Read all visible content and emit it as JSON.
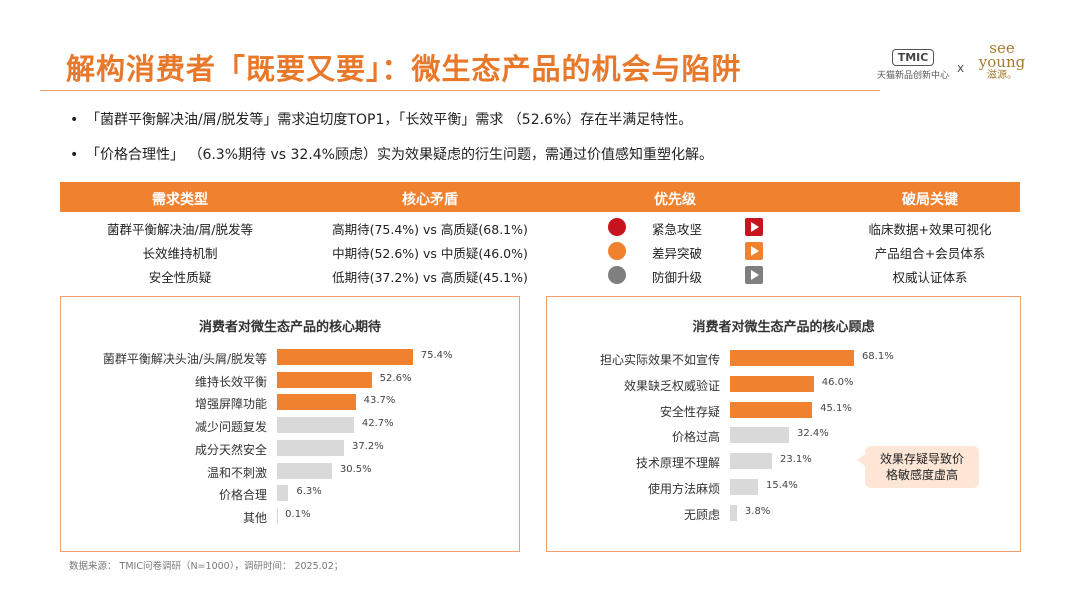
{
  "title": "解构消费者「既要又要」：微生态产品的机会与陷阱",
  "logos": {
    "tmic_badge": "TMIC",
    "tmic_sub": "天猫新品创新中心",
    "separator": "x",
    "seeyoung_line1": "see",
    "seeyoung_line2": "young",
    "seeyoung_cn": "滋源。"
  },
  "bullets": [
    "「菌群平衡解决油/屑/脱发等」需求迫切度TOP1，「长效平衡」需求 （52.6%）存在半满足特性。",
    "「价格合理性」 （6.3%期待 vs 32.4%顾虑）实为效果疑虑的衍生问题，需通过价值感知重塑化解。"
  ],
  "bullet_marker": "•",
  "table": {
    "headers": [
      "需求类型",
      "核心矛盾",
      "优先级",
      "破局关键"
    ],
    "rows": [
      {
        "type": "菌群平衡解决油/屑/脱发等",
        "conflict": "高期待(75.4%) vs 高质疑(68.1%)",
        "priority": "紧急攻坚",
        "priority_color": "#c8141e",
        "key": "临床数据+效果可视化",
        "icon_color": "#c8141e"
      },
      {
        "type": "长效维持机制",
        "conflict": "中期待(52.6%) vs 中质疑(46.0%)",
        "priority": "差异突破",
        "priority_color": "#f0812f",
        "key": "产品组合+会员体系",
        "icon_color": "#f0812f"
      },
      {
        "type": "安全性质疑",
        "conflict": "低期待(37.2%) vs 高质疑(45.1%)",
        "priority": "防御升级",
        "priority_color": "#7f7f7f",
        "key": "权威认证体系",
        "icon_color": "#7f7f7f"
      }
    ]
  },
  "chart_data": [
    {
      "type": "bar",
      "title": "消费者对微生态产品的核心期待",
      "categories": [
        "菌群平衡解决头油/头屑/脱发等",
        "维持长效平衡",
        "增强屏障功能",
        "减少问题复发",
        "成分天然安全",
        "温和不刺激",
        "价格合理",
        "其他"
      ],
      "values": [
        75.4,
        52.6,
        43.7,
        42.7,
        37.2,
        30.5,
        6.3,
        0.1
      ],
      "value_labels": [
        "75.4%",
        "52.6%",
        "43.7%",
        "42.7%",
        "37.2%",
        "30.5%",
        "6.3%",
        "0.1%"
      ],
      "colors": [
        "#f0812f",
        "#f0812f",
        "#f0812f",
        "#d9d9d9",
        "#d9d9d9",
        "#d9d9d9",
        "#d9d9d9",
        "#d9d9d9"
      ],
      "xlim": [
        0,
        100
      ],
      "orientation": "horizontal"
    },
    {
      "type": "bar",
      "title": "消费者对微生态产品的核心顾虑",
      "categories": [
        "担心实际效果不如宣传",
        "效果缺乏权威验证",
        "安全性存疑",
        "价格过高",
        "技术原理不理解",
        "使用方法麻烦",
        "无顾虑"
      ],
      "values": [
        68.1,
        46.0,
        45.1,
        32.4,
        23.1,
        15.4,
        3.8
      ],
      "value_labels": [
        "68.1%",
        "46.0%",
        "45.1%",
        "32.4%",
        "23.1%",
        "15.4%",
        "3.8%"
      ],
      "colors": [
        "#f0812f",
        "#f0812f",
        "#f0812f",
        "#d9d9d9",
        "#d9d9d9",
        "#d9d9d9",
        "#d9d9d9"
      ],
      "xlim": [
        0,
        100
      ],
      "orientation": "horizontal",
      "callout": [
        "效果存疑导致价",
        "格敏感度虚高"
      ]
    }
  ],
  "source": "数据来源： TMIC问卷调研（N=1000），调研时间： 2025.02；"
}
